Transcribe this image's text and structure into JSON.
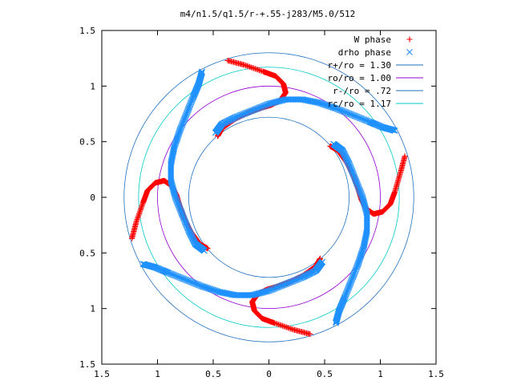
{
  "chart_data": {
    "type": "scatter",
    "title": "m4/n1.5/q1.5/r-+.55-j283/M5.0/512",
    "xlabel": "",
    "ylabel": "",
    "xlim": [
      -1.5,
      1.5
    ],
    "ylim": [
      -1.5,
      1.5
    ],
    "x_ticks": [
      -1.5,
      -1,
      -0.5,
      0,
      0.5,
      1,
      1.5
    ],
    "x_tick_labels": [
      "1.5",
      "1",
      "0.5",
      "0",
      "0.5",
      "1",
      "1.5"
    ],
    "y_ticks": [
      1.5,
      1,
      0.5,
      0,
      -0.5,
      -1,
      -1.5
    ],
    "y_tick_labels": [
      "1.5",
      "1",
      "0.5",
      "0",
      "0.5",
      "1",
      "1.5"
    ],
    "grid": false,
    "legend_position": "top-right",
    "series": [
      {
        "name": "W phase",
        "marker": "+",
        "color": "#ff0000",
        "segments": [
          [
            [
              1.22,
              0.37
            ],
            [
              1.18,
              0.22
            ],
            [
              1.13,
              0.05
            ],
            [
              1.09,
              -0.06
            ],
            [
              1.02,
              -0.13
            ],
            [
              0.94,
              -0.15
            ],
            [
              0.87,
              -0.1
            ],
            [
              0.83,
              -0.02
            ],
            [
              0.8,
              0.08
            ],
            [
              0.76,
              0.19
            ],
            [
              0.7,
              0.31
            ],
            [
              0.62,
              0.42
            ],
            [
              0.55,
              0.46
            ]
          ],
          [
            [
              0.37,
              -1.23
            ],
            [
              0.22,
              -1.19
            ],
            [
              0.05,
              -1.13
            ],
            [
              -0.06,
              -1.09
            ],
            [
              -0.13,
              -1.02
            ],
            [
              -0.15,
              -0.94
            ],
            [
              -0.1,
              -0.87
            ],
            [
              -0.02,
              -0.83
            ],
            [
              0.08,
              -0.8
            ],
            [
              0.19,
              -0.76
            ],
            [
              0.31,
              -0.7
            ],
            [
              0.42,
              -0.62
            ],
            [
              0.46,
              -0.55
            ]
          ],
          [
            [
              -1.23,
              -0.37
            ],
            [
              -1.19,
              -0.22
            ],
            [
              -1.13,
              -0.05
            ],
            [
              -1.09,
              0.06
            ],
            [
              -1.02,
              0.13
            ],
            [
              -0.94,
              0.15
            ],
            [
              -0.87,
              0.1
            ],
            [
              -0.83,
              0.02
            ],
            [
              -0.8,
              -0.08
            ],
            [
              -0.76,
              -0.19
            ],
            [
              -0.7,
              -0.31
            ],
            [
              -0.62,
              -0.42
            ],
            [
              -0.55,
              -0.46
            ]
          ],
          [
            [
              -0.37,
              1.23
            ],
            [
              -0.22,
              1.19
            ],
            [
              -0.05,
              1.13
            ],
            [
              0.06,
              1.09
            ],
            [
              0.13,
              1.02
            ],
            [
              0.15,
              0.94
            ],
            [
              0.1,
              0.87
            ],
            [
              0.02,
              0.83
            ],
            [
              -0.08,
              0.8
            ],
            [
              -0.19,
              0.76
            ],
            [
              -0.31,
              0.7
            ],
            [
              -0.42,
              0.62
            ],
            [
              -0.46,
              0.55
            ]
          ]
        ]
      },
      {
        "name": "drho phase",
        "marker": "x",
        "color": "#1e90ff",
        "segments": [
          [
            [
              -0.48,
              0.58
            ],
            [
              -0.42,
              0.66
            ],
            [
              -0.3,
              0.72
            ],
            [
              -0.15,
              0.78
            ],
            [
              0.0,
              0.84
            ],
            [
              0.15,
              0.88
            ],
            [
              0.3,
              0.88
            ],
            [
              0.45,
              0.85
            ],
            [
              0.6,
              0.8
            ],
            [
              0.75,
              0.74
            ],
            [
              0.9,
              0.68
            ],
            [
              1.02,
              0.63
            ],
            [
              1.13,
              0.6
            ]
          ],
          [
            [
              0.58,
              0.48
            ],
            [
              0.66,
              0.42
            ],
            [
              0.72,
              0.3
            ],
            [
              0.78,
              0.15
            ],
            [
              0.84,
              0.0
            ],
            [
              0.88,
              -0.15
            ],
            [
              0.88,
              -0.3
            ],
            [
              0.85,
              -0.45
            ],
            [
              0.8,
              -0.6
            ],
            [
              0.74,
              -0.75
            ],
            [
              0.68,
              -0.9
            ],
            [
              0.63,
              -1.02
            ],
            [
              0.6,
              -1.13
            ]
          ],
          [
            [
              0.48,
              -0.58
            ],
            [
              0.42,
              -0.66
            ],
            [
              0.3,
              -0.72
            ],
            [
              0.15,
              -0.78
            ],
            [
              0.0,
              -0.84
            ],
            [
              -0.15,
              -0.88
            ],
            [
              -0.3,
              -0.88
            ],
            [
              -0.45,
              -0.85
            ],
            [
              -0.6,
              -0.8
            ],
            [
              -0.75,
              -0.74
            ],
            [
              -0.9,
              -0.68
            ],
            [
              -1.02,
              -0.63
            ],
            [
              -1.13,
              -0.6
            ]
          ],
          [
            [
              -0.58,
              -0.48
            ],
            [
              -0.66,
              -0.42
            ],
            [
              -0.72,
              -0.3
            ],
            [
              -0.78,
              -0.15
            ],
            [
              -0.84,
              0.0
            ],
            [
              -0.88,
              0.15
            ],
            [
              -0.88,
              0.3
            ],
            [
              -0.85,
              0.45
            ],
            [
              -0.8,
              0.6
            ],
            [
              -0.74,
              0.75
            ],
            [
              -0.68,
              0.9
            ],
            [
              -0.63,
              1.02
            ],
            [
              -0.6,
              1.13
            ]
          ]
        ]
      },
      {
        "name": "r+/ro = 1.30",
        "type": "circle",
        "radius": 1.3,
        "color": "#1e6fbf"
      },
      {
        "name": "ro/ro = 1.00",
        "type": "circle",
        "radius": 1.0,
        "color": "#9400d3"
      },
      {
        "name": "r-/ro = .72",
        "type": "circle",
        "radius": 0.72,
        "color": "#1e6fbf"
      },
      {
        "name": "rc/ro = 1.17",
        "type": "circle",
        "radius": 1.17,
        "color": "#00c8c8"
      }
    ]
  }
}
